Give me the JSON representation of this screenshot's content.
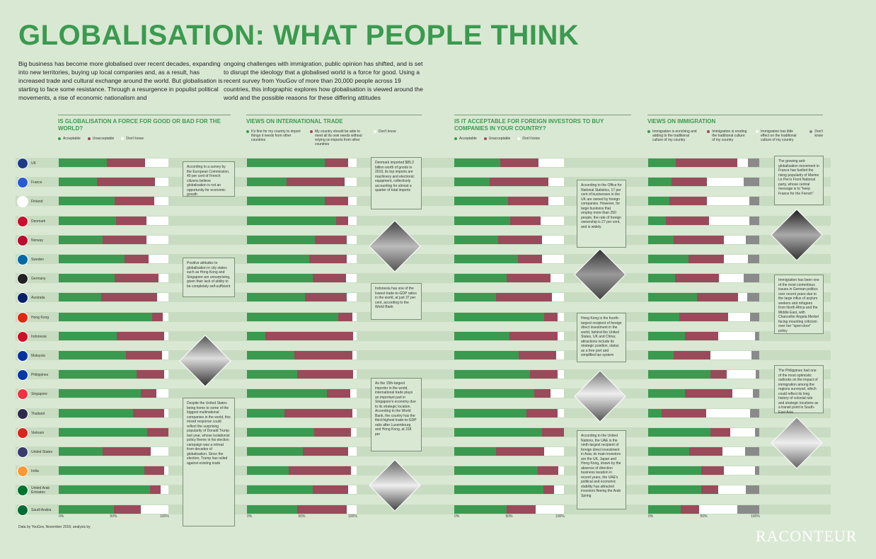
{
  "title": "GLOBALISATION: WHAT PEOPLE THINK",
  "intro_left": "Big business has become more globalised over recent decades, expanding into new territories, buying up local companies and, as a result, has increased trade and cultural exchange around the world. But globalisation is starting to face some resistance. Through a resurgence in populist political movements, a rise of economic nationalism and",
  "intro_right": "ongoing challenges with immigration, public opinion has shifted, and is set to disrupt the ideology that a globalised world is a force for good. Using a recent survey from YouGov of more than 20,000 people across 19 countries, this infographic explores how globalisation is viewed around the world and the possible reasons for these differing attitudes",
  "source": "Data by YouGov, November 2016; analysis by",
  "logo": "RACONTEUR",
  "countries": [
    "UK",
    "France",
    "Finland",
    "Denmark",
    "Norway",
    "Sweden",
    "Germany",
    "Australia",
    "Hong Kong",
    "Indonesia",
    "Malaysia",
    "Philippines",
    "Singapore",
    "Thailand",
    "Vietnam",
    "United States",
    "India",
    "United Arab Emirates",
    "Saudi Arabia"
  ],
  "flag_colors": [
    "#1f3c88",
    "#2a5bd7",
    "#ffffff",
    "#c8102e",
    "#ba0c2f",
    "#006aa7",
    "#222222",
    "#012169",
    "#de2910",
    "#ce1126",
    "#0033a0",
    "#0038a8",
    "#ef3340",
    "#2d2a4a",
    "#da251d",
    "#3c3b6e",
    "#ff9933",
    "#00732f",
    "#006c35"
  ],
  "colors": {
    "green": "#3a9a4f",
    "red": "#9a4a5a",
    "white": "#ffffff",
    "grey": "#8a8a8a",
    "accent": "#3a9a4f",
    "background": "#d9e8d3"
  },
  "chart_data": [
    {
      "type": "bar",
      "title": "IS GLOBALISATION A FORCE FOR GOOD OR BAD FOR THE WORLD?",
      "categories": [
        "UK",
        "France",
        "Finland",
        "Denmark",
        "Norway",
        "Sweden",
        "Germany",
        "Australia",
        "Hong Kong",
        "Indonesia",
        "Malaysia",
        "Philippines",
        "Singapore",
        "Thailand",
        "Vietnam",
        "United States",
        "India",
        "United Arab Emirates",
        "Saudi Arabia"
      ],
      "series": [
        {
          "name": "Acceptable",
          "values": [
            44,
            35,
            51,
            52,
            40,
            60,
            51,
            39,
            85,
            53,
            61,
            71,
            75,
            68,
            82,
            40,
            78,
            83,
            50
          ]
        },
        {
          "name": "Unacceptable",
          "values": [
            35,
            53,
            36,
            28,
            40,
            22,
            40,
            51,
            10,
            43,
            33,
            25,
            14,
            28,
            20,
            44,
            18,
            10,
            25
          ]
        },
        {
          "name": "Don't know",
          "values": [
            21,
            12,
            13,
            20,
            20,
            18,
            9,
            10,
            5,
            4,
            6,
            4,
            11,
            4,
            -2,
            16,
            4,
            7,
            25
          ]
        }
      ],
      "tick_labels": [
        "0%",
        "50%",
        "100%"
      ]
    },
    {
      "type": "bar",
      "title": "VIEWS ON INTERNATIONAL TRADE",
      "categories": [
        "UK",
        "France",
        "Finland",
        "Denmark",
        "Norway",
        "Sweden",
        "Germany",
        "Australia",
        "Hong Kong",
        "Indonesia",
        "Malaysia",
        "Philippines",
        "Singapore",
        "Thailand",
        "Vietnam",
        "United States",
        "India",
        "United Arab Emirates",
        "Saudi Arabia"
      ],
      "series": [
        {
          "name": "It's fine for my country to import things it needs from other countries",
          "values": [
            71,
            36,
            71,
            81,
            62,
            57,
            60,
            53,
            83,
            17,
            43,
            46,
            73,
            34,
            61,
            51,
            38,
            60,
            46
          ]
        },
        {
          "name": "My country should be able to meet all its own needs without relying on imports from other countries",
          "values": [
            21,
            53,
            21,
            11,
            29,
            34,
            30,
            38,
            13,
            80,
            53,
            51,
            21,
            62,
            34,
            41,
            57,
            32,
            45
          ]
        },
        {
          "name": "Don't know",
          "values": [
            8,
            11,
            8,
            8,
            9,
            9,
            10,
            9,
            4,
            3,
            4,
            3,
            6,
            4,
            5,
            8,
            5,
            8,
            9
          ]
        }
      ],
      "tick_labels": [
        "0%",
        "50%",
        "100%"
      ]
    },
    {
      "type": "bar",
      "title": "IS IT ACCEPTABLE FOR FOREIGN INVESTORS TO BUY COMPANIES IN YOUR COUNTRY?",
      "categories": [
        "UK",
        "France",
        "Finland",
        "Denmark",
        "Norway",
        "Sweden",
        "Germany",
        "Australia",
        "Hong Kong",
        "Indonesia",
        "Malaysia",
        "Philippines",
        "Singapore",
        "Thailand",
        "Vietnam",
        "United States",
        "India",
        "United Arab Emirates",
        "Saudi Arabia"
      ],
      "series": [
        {
          "name": "Acceptable",
          "values": [
            42,
            32,
            49,
            51,
            40,
            58,
            48,
            38,
            82,
            50,
            59,
            69,
            73,
            66,
            80,
            38,
            76,
            81,
            48
          ]
        },
        {
          "name": "Unacceptable",
          "values": [
            35,
            54,
            37,
            28,
            40,
            22,
            40,
            51,
            12,
            44,
            34,
            25,
            15,
            28,
            20,
            44,
            19,
            10,
            26
          ]
        },
        {
          "name": "Don't know",
          "values": [
            23,
            14,
            14,
            21,
            20,
            20,
            12,
            11,
            6,
            6,
            7,
            6,
            12,
            6,
            0,
            18,
            5,
            9,
            26
          ]
        }
      ],
      "tick_labels": [
        "0%",
        "50%",
        "100%"
      ]
    },
    {
      "type": "bar",
      "title": "VIEWS ON IMMIGRATION",
      "categories": [
        "UK",
        "France",
        "Finland",
        "Denmark",
        "Norway",
        "Sweden",
        "Germany",
        "Australia",
        "Hong Kong",
        "Indonesia",
        "Malaysia",
        "Philippines",
        "Singapore",
        "Thailand",
        "Vietnam",
        "United States",
        "India",
        "United Arab Emirates",
        "Saudi Arabia"
      ],
      "series": [
        {
          "name": "Immigration is enriching and adding to the traditional culture of my country",
          "values": [
            25,
            21,
            19,
            16,
            23,
            36,
            24,
            44,
            28,
            33,
            23,
            56,
            33,
            12,
            56,
            37,
            48,
            48,
            29
          ]
        },
        {
          "name": "Immigration is eroding the traditional culture of my country",
          "values": [
            55,
            32,
            34,
            39,
            45,
            32,
            40,
            37,
            44,
            30,
            33,
            15,
            43,
            40,
            18,
            30,
            20,
            15,
            17
          ]
        },
        {
          "name": "Immigration has little effect on the traditional culture of my country",
          "values": [
            10,
            33,
            38,
            36,
            20,
            22,
            22,
            8,
            20,
            33,
            37,
            26,
            18,
            40,
            22,
            20,
            28,
            25,
            34
          ]
        },
        {
          "name": "Don't know",
          "values": [
            10,
            14,
            9,
            9,
            12,
            10,
            14,
            11,
            8,
            4,
            7,
            3,
            6,
            8,
            4,
            13,
            4,
            12,
            20
          ]
        }
      ],
      "tick_labels": [
        "0%",
        "50%",
        "100%"
      ]
    }
  ],
  "notes": [
    "According to a survey by the European Commission, 40 per cent of French citizens believe globalisation is not an opportunity for economic growth",
    "Positive attitudes to globalisation in city states such as Hong Kong and Singapore are unsurprising, given their lack of ability to be completely self-sufficient",
    "Despite the United States being home to some of the biggest multinational companies in the world, this mixed response could reflect the surprising popularity of Donald Trump last year, whose isolationist policy theme in his election campaign was a retreat from decades of globalisation. Since the election, Trump has railed against existing trade",
    "Denmark imported $85.2 billion worth of goods in 2016; its top imports are machinery and electronic equipment, collectively accounting for almost a quarter of total imports",
    "Indonesia has one of the lowest trade-to-GDP ratios in the world, at just 37 per cent, according to the World Bank",
    "As the 15th-largest importer in the world, international trade plays an important part in Singapore's economy due to its strategic location. According to the World Bank, the country has the third-highest trade-to-GDP ratio after Luxembourg and Hong Kong, at 318 per",
    "According to the Office for National Statistics, 17 per cent of businesses in the UK are owned by foreign companies. However, for large business that employ more than 250 people, the rate of foreign ownership is 27 per cent, and is widely",
    "Hong Kong is the fourth-largest recipient of foreign direct investment in the world, behind the United States, UK and China; attractions include its strategic position, status as a free port and simplified tax system",
    "According to the United Nations, the UAE is the ninth-largest recipient of foreign direct investment in Asia; its main investors are the UK, Japan and Hong Kong, drawn by the absence of direction business taxation in recent years, the UAE's political and economic stability has attracted investors fleeing the Arab Spring",
    "The growing anti-globalisation movement in France has fuelled the rising popularity of Marine Le Pen's Front National party, whose central message is to \"keep France for the French\"",
    "Immigration has been one of the most contentious issues in German politics over recent years due to the large influx of asylum seekers and refugees from North Africa and the Middle East, with Chancellor Angela Merkel facing mounting criticism over her \"open-door\" policy",
    "The Philippines had one of the most optimistic outlooks on the impact of immigration among the regions surveyed, which could reflect its long history of colonial rule and strategic locations as a transit point in South-East Asia"
  ]
}
